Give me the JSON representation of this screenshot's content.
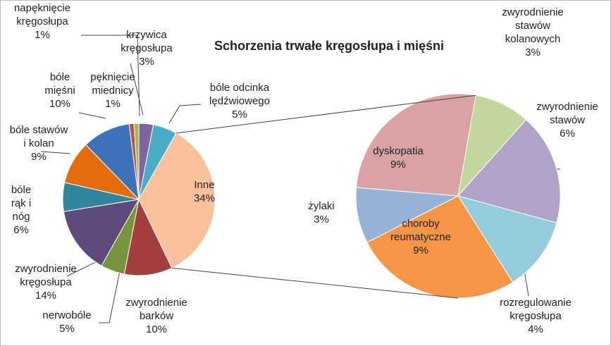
{
  "chart_data": [
    {
      "type": "pie",
      "title": "Schorzenia trwałe kręgosłupa i mięśni",
      "categories": [
        "krzywica\nkręgosłupa",
        "bóle odcinka\nlędźwiowego",
        "Inne",
        "zwyrodnienie\nbarków",
        "nerwobóle",
        "zwyrodnienie\nkręgosłupa",
        "bóle\nrąk i\nnóg",
        "bóle stawów\ni kolan",
        "bóle\nmięśni",
        "napęknięcie\nkręgosłupa",
        "pęknięcie\nmiednicy"
      ],
      "values": [
        3,
        5,
        34,
        10,
        5,
        14,
        6,
        9,
        10,
        1,
        1
      ],
      "value_labels": [
        "3%",
        "5%",
        "34%",
        "10%",
        "5%",
        "14%",
        "6%",
        "9%",
        "10%",
        "1%",
        "1%"
      ],
      "colors": [
        "#8064a2",
        "#4bacc6",
        "#fabf9b",
        "#a33f3c",
        "#77933c",
        "#604a7b",
        "#31859c",
        "#e46c0a",
        "#3d72b8",
        "#c0504d",
        "#9bbb59"
      ]
    },
    {
      "type": "pie",
      "categories": [
        "zwyrodnienie\nstawów\nkolanowych",
        "zwyrodnienie\nstawów",
        "rozregulowanie\nkręgosłupa",
        "choroby\nreumatyczne",
        "żylaki",
        "dyskopatia"
      ],
      "values": [
        3,
        6,
        4,
        9,
        3,
        9
      ],
      "value_labels": [
        "3%",
        "6%",
        "4%",
        "9%",
        "3%",
        "9%"
      ],
      "colors": [
        "#c3d69b",
        "#b3a2c7",
        "#93cddd",
        "#f79646",
        "#95b3d7",
        "#d9a3a3"
      ]
    }
  ]
}
